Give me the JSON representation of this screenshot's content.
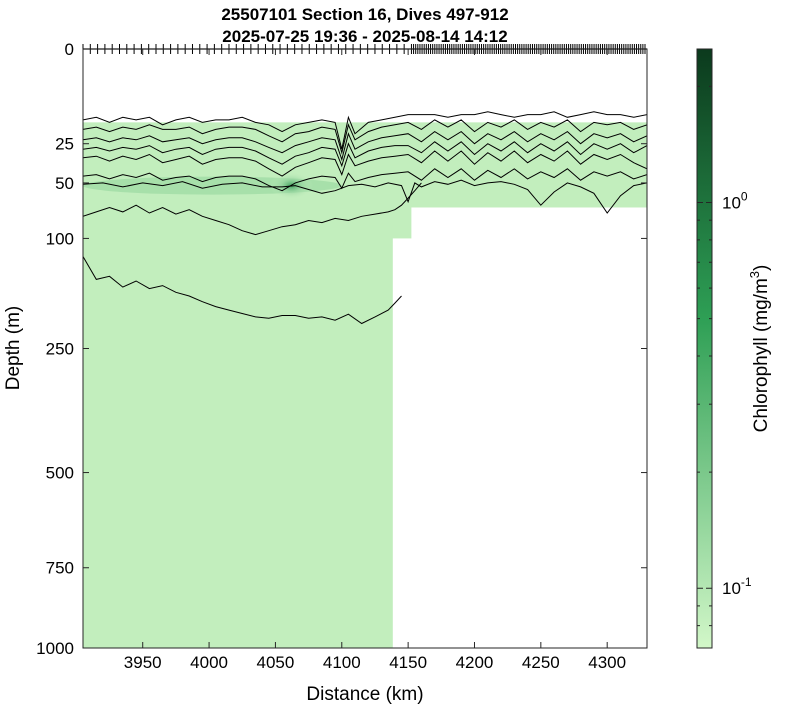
{
  "chart_data": {
    "type": "heatmap",
    "title": [
      "25507101 Section 16, Dives 497-912",
      "2025-07-25 19:36 - 2025-08-14 14:12"
    ],
    "xlabel": "Distance (km)",
    "ylabel": "Depth (m)",
    "xlim": [
      3905,
      4330
    ],
    "ylim": [
      0,
      1000
    ],
    "y_scale": "sqrt",
    "x_ticks": [
      3950,
      4000,
      4050,
      4100,
      4150,
      4200,
      4250,
      4300
    ],
    "y_ticks": [
      0,
      25,
      50,
      100,
      250,
      500,
      750,
      1000
    ],
    "colorbar": {
      "label": "Chlorophyll (mg/m",
      "label_superscript": "3",
      "label_close": ")",
      "scale": "log",
      "range": [
        0.07,
        2.5
      ],
      "tick_labels": [
        {
          "value": 1.0,
          "base": "10",
          "exp": "0"
        },
        {
          "value": 0.1,
          "base": "10",
          "exp": "-1"
        }
      ],
      "colors": {
        "low": "#d2f7c8",
        "mid": "#2e9f55",
        "high": "#0b3a1d"
      }
    },
    "data_regions": {
      "surface_gap_depth": 15,
      "deep_profile": {
        "x": [
          3905,
          4138
        ],
        "y": [
          15,
          1000
        ]
      },
      "transition": {
        "x": [
          4138,
          4152
        ],
        "y": [
          15,
          100
        ]
      },
      "shallow_profile": {
        "x": [
          4152,
          4330
        ],
        "y": [
          15,
          70
        ]
      },
      "background_value": 0.085,
      "dcm_patch": {
        "x": [
          3905,
          4100
        ],
        "depth": 52,
        "peak_x": 4062,
        "peak_value": 0.35
      }
    },
    "dive_marks": {
      "x_start": 3905,
      "x_end": 4330,
      "sparse_until": 4150,
      "sparse_step": 5.5,
      "dense_step": 1.6
    },
    "contours": [
      {
        "x": [
          3905,
          3915,
          3925,
          3935,
          3945,
          3955,
          3965,
          3975,
          3985,
          3995,
          4005,
          4015,
          4025,
          4035,
          4045,
          4055,
          4065,
          4075,
          4085,
          4095,
          4100,
          4105,
          4110,
          4120,
          4130,
          4140,
          4150,
          4160,
          4170,
          4180,
          4190,
          4200,
          4210,
          4220,
          4230,
          4240,
          4250,
          4260,
          4270,
          4280,
          4290,
          4300,
          4310,
          4320,
          4330
        ],
        "y": [
          14,
          13,
          15,
          13,
          14,
          13,
          16,
          14,
          13,
          15,
          14,
          14,
          13,
          15,
          16,
          19,
          16,
          15,
          14,
          15,
          28,
          13,
          20,
          15,
          14,
          13,
          12,
          12,
          12,
          13,
          12,
          12,
          11,
          12,
          13,
          12,
          12,
          11,
          13,
          12,
          11,
          12,
          12,
          13,
          12
        ]
      },
      {
        "x": [
          3905,
          3915,
          3925,
          3935,
          3945,
          3955,
          3965,
          3975,
          3985,
          3995,
          4005,
          4015,
          4025,
          4035,
          4045,
          4055,
          4065,
          4075,
          4085,
          4095,
          4100,
          4105,
          4110,
          4120,
          4130,
          4140,
          4150,
          4160,
          4170,
          4180,
          4190,
          4200,
          4210,
          4220,
          4230,
          4240,
          4250,
          4260,
          4270,
          4280,
          4290,
          4300,
          4310,
          4320,
          4330
        ],
        "y": [
          18,
          17,
          19,
          17,
          18,
          16,
          18,
          18,
          17,
          20,
          18,
          17,
          17,
          18,
          21,
          24,
          20,
          19,
          17,
          18,
          30,
          16,
          23,
          19,
          17,
          16,
          15,
          18,
          14,
          17,
          14,
          19,
          15,
          17,
          14,
          18,
          15,
          17,
          14,
          19,
          15,
          16,
          15,
          18,
          16
        ]
      },
      {
        "x": [
          3905,
          3915,
          3925,
          3935,
          3945,
          3955,
          3965,
          3975,
          3985,
          3995,
          4005,
          4015,
          4025,
          4035,
          4045,
          4055,
          4065,
          4075,
          4085,
          4095,
          4100,
          4105,
          4110,
          4120,
          4130,
          4140,
          4150,
          4160,
          4170,
          4180,
          4190,
          4200,
          4210,
          4220,
          4230,
          4240,
          4250,
          4260,
          4270,
          4280,
          4290,
          4300,
          4310,
          4320,
          4330
        ],
        "y": [
          23,
          22,
          24,
          22,
          23,
          21,
          24,
          23,
          22,
          25,
          23,
          22,
          22,
          24,
          27,
          30,
          26,
          24,
          22,
          23,
          34,
          20,
          28,
          24,
          22,
          21,
          20,
          24,
          19,
          23,
          19,
          25,
          20,
          23,
          19,
          24,
          20,
          23,
          19,
          25,
          20,
          22,
          20,
          24,
          21
        ]
      },
      {
        "x": [
          3905,
          3915,
          3925,
          3935,
          3945,
          3955,
          3965,
          3975,
          3985,
          3995,
          4005,
          4015,
          4025,
          4035,
          4045,
          4055,
          4065,
          4075,
          4085,
          4095,
          4100,
          4105,
          4110,
          4120,
          4130,
          4140,
          4150,
          4160,
          4170,
          4180,
          4190,
          4200,
          4210,
          4220,
          4230,
          4240,
          4250,
          4260,
          4270,
          4280,
          4290,
          4300,
          4310,
          4320,
          4330
        ],
        "y": [
          28,
          27,
          29,
          27,
          28,
          26,
          30,
          28,
          27,
          31,
          28,
          27,
          27,
          29,
          33,
          37,
          32,
          30,
          27,
          28,
          38,
          25,
          33,
          29,
          27,
          26,
          26,
          30,
          24,
          29,
          24,
          31,
          25,
          29,
          24,
          30,
          25,
          29,
          24,
          31,
          25,
          28,
          25,
          30,
          26
        ]
      },
      {
        "x": [
          3905,
          3915,
          3925,
          3935,
          3945,
          3955,
          3965,
          3975,
          3985,
          3995,
          4005,
          4015,
          4025,
          4035,
          4045,
          4055,
          4065,
          4075,
          4085,
          4095,
          4100,
          4105,
          4110,
          4120,
          4130,
          4140,
          4150,
          4160,
          4170,
          4180,
          4190,
          4200,
          4210,
          4220,
          4230,
          4240,
          4250,
          4260,
          4270,
          4280,
          4290,
          4300,
          4310,
          4320,
          4330
        ],
        "y": [
          33,
          32,
          35,
          32,
          34,
          31,
          36,
          34,
          32,
          37,
          34,
          33,
          33,
          35,
          40,
          45,
          39,
          36,
          33,
          34,
          44,
          31,
          38,
          35,
          33,
          32,
          31,
          36,
          29,
          35,
          29,
          37,
          30,
          35,
          29,
          36,
          31,
          35,
          29,
          37,
          31,
          34,
          31,
          36,
          40
        ]
      },
      {
        "x": [
          3905,
          3915,
          3925,
          3935,
          3945,
          3955,
          3965,
          3975,
          3985,
          3995,
          4005,
          4015,
          4025,
          4035,
          4045,
          4055,
          4065,
          4075,
          4085,
          4095,
          4100,
          4105,
          4110,
          4120,
          4130,
          4140,
          4150,
          4160,
          4170,
          4180,
          4190,
          4200,
          4210,
          4220,
          4230,
          4240,
          4250,
          4260,
          4270,
          4280,
          4290,
          4300,
          4310,
          4320,
          4330
        ],
        "y": [
          45,
          44,
          47,
          44,
          46,
          43,
          48,
          46,
          45,
          49,
          46,
          45,
          45,
          47,
          52,
          56,
          50,
          47,
          45,
          46,
          54,
          43,
          49,
          46,
          44,
          43,
          42,
          48,
          40,
          46,
          40,
          48,
          41,
          46,
          40,
          47,
          42,
          46,
          40,
          48,
          42,
          45,
          42,
          47,
          44
        ]
      },
      {
        "x": [
          3905,
          3920,
          3935,
          3950,
          3965,
          3980,
          3995,
          4010,
          4025,
          4040,
          4055,
          4065,
          4075,
          4085,
          4095,
          4105,
          4115,
          4125,
          4135,
          4145,
          4150,
          4155,
          4160,
          4170,
          4180,
          4190,
          4200,
          4210,
          4220,
          4230,
          4240,
          4250,
          4260,
          4270,
          4280,
          4290,
          4300,
          4310,
          4320,
          4330
        ],
        "y": [
          51,
          50,
          53,
          50,
          52,
          49,
          54,
          51,
          50,
          53,
          53,
          52,
          55,
          58,
          56,
          52,
          51,
          53,
          50,
          52,
          65,
          50,
          53,
          49,
          51,
          48,
          52,
          50,
          49,
          51,
          55,
          68,
          57,
          50,
          53,
          58,
          75,
          60,
          52,
          50
        ]
      },
      {
        "x": [
          3905,
          3915,
          3925,
          3935,
          3945,
          3955,
          3965,
          3975,
          3985,
          3995,
          4005,
          4015,
          4025,
          4035,
          4045,
          4055,
          4065,
          4075,
          4085,
          4095,
          4105,
          4115,
          4125,
          4135,
          4140,
          4145,
          4150,
          4155,
          4160
        ],
        "y": [
          78,
          74,
          70,
          74,
          68,
          75,
          70,
          76,
          72,
          78,
          82,
          86,
          92,
          96,
          92,
          88,
          86,
          82,
          84,
          80,
          82,
          78,
          76,
          74,
          72,
          68,
          62,
          56,
          50
        ]
      },
      {
        "x": [
          3905,
          3915,
          3925,
          3935,
          3945,
          3955,
          3965,
          3975,
          3985,
          3995,
          4005,
          4015,
          4025,
          4035,
          4045,
          4055,
          4065,
          4075,
          4085,
          4095,
          4105,
          4115,
          4125,
          4135,
          4140,
          4145
        ],
        "y": [
          120,
          148,
          144,
          158,
          150,
          160,
          156,
          165,
          170,
          178,
          185,
          190,
          195,
          200,
          202,
          198,
          198,
          202,
          200,
          205,
          196,
          210,
          200,
          190,
          180,
          170
        ]
      }
    ]
  }
}
